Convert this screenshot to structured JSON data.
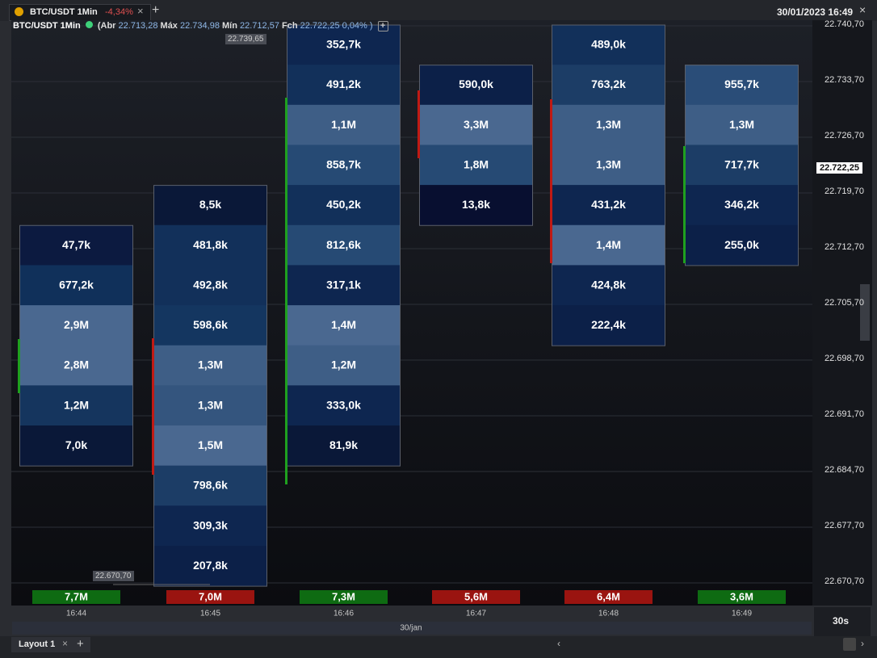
{
  "tab": {
    "title": "BTC/USDT 1Min",
    "change": "-4,34%"
  },
  "datetime": "30/01/2023 16:49",
  "legend": {
    "symbol": "BTC/USDT 1Min",
    "open_label": "(Abr",
    "open": "22.713,28",
    "high_label": "Máx",
    "high": "22.734,98",
    "low_label": "Mín",
    "low": "22.712,57",
    "close_label": "Fch",
    "close": "22.722,25",
    "change": "0,04% )"
  },
  "markers": {
    "high": "22.739,65",
    "low": "22.670,70"
  },
  "price_axis": {
    "ticks": [
      "22.740,70",
      "22.733,70",
      "22.726,70",
      "22.719,70",
      "22.712,70",
      "22.705,70",
      "22.698,70",
      "22.691,70",
      "22.684,70",
      "22.677,70",
      "22.670,70"
    ],
    "last_price": "22.722,25"
  },
  "candles": [
    {
      "time": "16:44",
      "volume": "7,7M",
      "color": "#0e6b12",
      "cells": [
        {
          "text": "47,7k",
          "color": "#0c1a40"
        },
        {
          "text": "677,2k",
          "color": "#10305a"
        },
        {
          "text": "2,9M",
          "color": "#4a6890"
        },
        {
          "text": "2,8M",
          "color": "#4a6890"
        },
        {
          "text": "1,2M",
          "color": "#15355e"
        },
        {
          "text": "7,0k",
          "color": "#0a1838"
        }
      ]
    },
    {
      "time": "16:45",
      "volume": "7,0M",
      "color": "#9a1410",
      "cells": [
        {
          "text": "8,5k",
          "color": "#0a1838"
        },
        {
          "text": "481,8k",
          "color": "#12305a"
        },
        {
          "text": "492,8k",
          "color": "#12305a"
        },
        {
          "text": "598,6k",
          "color": "#143660"
        },
        {
          "text": "1,3M",
          "color": "#3e5e86"
        },
        {
          "text": "1,3M",
          "color": "#34557e"
        },
        {
          "text": "1,5M",
          "color": "#4a6890"
        },
        {
          "text": "798,6k",
          "color": "#1c3d66"
        },
        {
          "text": "309,3k",
          "color": "#0e2650"
        },
        {
          "text": "207,8k",
          "color": "#0c2048"
        }
      ]
    },
    {
      "time": "16:46",
      "volume": "7,3M",
      "color": "#0e6b12",
      "cells": [
        {
          "text": "352,7k",
          "color": "#0e2650"
        },
        {
          "text": "491,2k",
          "color": "#12305a"
        },
        {
          "text": "1,1M",
          "color": "#3e5e86"
        },
        {
          "text": "858,7k",
          "color": "#264a74"
        },
        {
          "text": "450,2k",
          "color": "#12305a"
        },
        {
          "text": "812,6k",
          "color": "#264a74"
        },
        {
          "text": "317,1k",
          "color": "#0e2650"
        },
        {
          "text": "1,4M",
          "color": "#4a6890"
        },
        {
          "text": "1,2M",
          "color": "#3e5e86"
        },
        {
          "text": "333,0k",
          "color": "#0e2650"
        },
        {
          "text": "81,9k",
          "color": "#0a1838"
        }
      ]
    },
    {
      "time": "16:47",
      "volume": "5,6M",
      "color": "#9a1410",
      "cells": [
        {
          "text": "590,0k",
          "color": "#0c2048"
        },
        {
          "text": "3,3M",
          "color": "#4a6890"
        },
        {
          "text": "1,8M",
          "color": "#264a74"
        },
        {
          "text": "13,8k",
          "color": "#080f30"
        }
      ]
    },
    {
      "time": "16:48",
      "volume": "6,4M",
      "color": "#9a1410",
      "cells": [
        {
          "text": "489,0k",
          "color": "#12305a"
        },
        {
          "text": "763,2k",
          "color": "#1c3d66"
        },
        {
          "text": "1,3M",
          "color": "#3e5e86"
        },
        {
          "text": "1,3M",
          "color": "#3e5e86"
        },
        {
          "text": "431,2k",
          "color": "#0e2650"
        },
        {
          "text": "1,4M",
          "color": "#4a6890"
        },
        {
          "text": "424,8k",
          "color": "#0e2650"
        },
        {
          "text": "222,4k",
          "color": "#0c2048"
        }
      ]
    },
    {
      "time": "16:49",
      "volume": "3,6M",
      "color": "#0e6b12",
      "cells": [
        {
          "text": "955,7k",
          "color": "#2a4d78"
        },
        {
          "text": "1,3M",
          "color": "#3e5e86"
        },
        {
          "text": "717,7k",
          "color": "#1c3d66"
        },
        {
          "text": "346,2k",
          "color": "#0e2650"
        },
        {
          "text": "255,0k",
          "color": "#0c2048"
        }
      ]
    }
  ],
  "date": "30/jan",
  "timeframe": "30s",
  "layout_tab": "Layout 1"
}
